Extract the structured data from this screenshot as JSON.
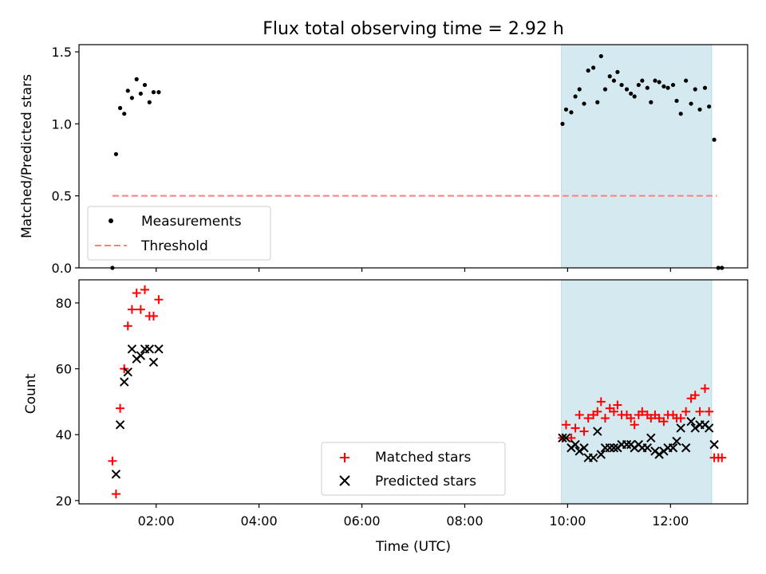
{
  "chart_data": [
    {
      "type": "scatter",
      "title": "Flux total observing time = 2.92 h",
      "xlabel": "",
      "ylabel": "Matched/Predicted stars",
      "xlim": [
        0.5,
        13.5
      ],
      "ylim": [
        0.0,
        1.55
      ],
      "yticks": [
        0.0,
        0.5,
        1.0,
        1.5
      ],
      "ytick_labels": [
        "0.0",
        "0.5",
        "1.0",
        "1.5"
      ],
      "shaded_region": {
        "x_start": 9.88,
        "x_end": 12.8,
        "color": "#d4eaf0"
      },
      "threshold": {
        "name": "Threshold",
        "value": 0.5,
        "x_start": 1.15,
        "x_end": 12.9,
        "color": "#ff7f7f"
      },
      "legend": {
        "position": "lower-left",
        "entries": [
          "Measurements",
          "Threshold"
        ]
      },
      "series": [
        {
          "name": "Measurements",
          "marker": "dot",
          "color": "#000000",
          "points": [
            [
              1.15,
              0.0
            ],
            [
              1.22,
              0.79
            ],
            [
              1.3,
              1.11
            ],
            [
              1.38,
              1.07
            ],
            [
              1.45,
              1.23
            ],
            [
              1.53,
              1.18
            ],
            [
              1.62,
              1.31
            ],
            [
              1.7,
              1.21
            ],
            [
              1.78,
              1.27
            ],
            [
              1.87,
              1.15
            ],
            [
              1.95,
              1.22
            ],
            [
              2.05,
              1.22
            ],
            [
              9.9,
              1.0
            ],
            [
              9.97,
              1.1
            ],
            [
              10.07,
              1.08
            ],
            [
              10.15,
              1.19
            ],
            [
              10.23,
              1.24
            ],
            [
              10.32,
              1.14
            ],
            [
              10.4,
              1.37
            ],
            [
              10.5,
              1.39
            ],
            [
              10.58,
              1.15
            ],
            [
              10.65,
              1.47
            ],
            [
              10.73,
              1.24
            ],
            [
              10.82,
              1.33
            ],
            [
              10.9,
              1.3
            ],
            [
              10.97,
              1.36
            ],
            [
              11.05,
              1.27
            ],
            [
              11.15,
              1.24
            ],
            [
              11.23,
              1.21
            ],
            [
              11.3,
              1.19
            ],
            [
              11.38,
              1.27
            ],
            [
              11.45,
              1.3
            ],
            [
              11.55,
              1.25
            ],
            [
              11.62,
              1.15
            ],
            [
              11.7,
              1.3
            ],
            [
              11.78,
              1.29
            ],
            [
              11.87,
              1.26
            ],
            [
              11.95,
              1.25
            ],
            [
              12.05,
              1.27
            ],
            [
              12.12,
              1.16
            ],
            [
              12.2,
              1.07
            ],
            [
              12.3,
              1.3
            ],
            [
              12.4,
              1.14
            ],
            [
              12.48,
              1.24
            ],
            [
              12.57,
              1.1
            ],
            [
              12.67,
              1.25
            ],
            [
              12.75,
              1.12
            ],
            [
              12.85,
              0.89
            ],
            [
              12.93,
              0.0
            ],
            [
              13.0,
              0.0
            ]
          ]
        }
      ]
    },
    {
      "type": "scatter",
      "xlabel": "Time (UTC)",
      "ylabel": "Count",
      "xlim": [
        0.5,
        13.5
      ],
      "ylim": [
        19.0,
        87.0
      ],
      "xticks": [
        2,
        4,
        6,
        8,
        10,
        12
      ],
      "xtick_labels": [
        "02:00",
        "04:00",
        "06:00",
        "08:00",
        "10:00",
        "12:00"
      ],
      "yticks": [
        20,
        40,
        60,
        80
      ],
      "ytick_labels": [
        "20",
        "40",
        "60",
        "80"
      ],
      "shaded_region": {
        "x_start": 9.88,
        "x_end": 12.8,
        "color": "#d4eaf0"
      },
      "legend": {
        "position": "lower-center",
        "entries": [
          "Matched stars",
          "Predicted stars"
        ]
      },
      "series": [
        {
          "name": "Matched stars",
          "marker": "plus",
          "color": "#ff0000",
          "points": [
            [
              1.15,
              32
            ],
            [
              1.22,
              22
            ],
            [
              1.3,
              48
            ],
            [
              1.38,
              60
            ],
            [
              1.45,
              73
            ],
            [
              1.53,
              78
            ],
            [
              1.62,
              83
            ],
            [
              1.7,
              78
            ],
            [
              1.78,
              84
            ],
            [
              1.87,
              76
            ],
            [
              1.95,
              76
            ],
            [
              2.05,
              81
            ],
            [
              9.9,
              39
            ],
            [
              9.97,
              43
            ],
            [
              10.07,
              39
            ],
            [
              10.15,
              42
            ],
            [
              10.23,
              46
            ],
            [
              10.32,
              41
            ],
            [
              10.4,
              45
            ],
            [
              10.5,
              46
            ],
            [
              10.58,
              47
            ],
            [
              10.65,
              50
            ],
            [
              10.73,
              45
            ],
            [
              10.82,
              48
            ],
            [
              10.9,
              47
            ],
            [
              10.97,
              49
            ],
            [
              11.05,
              46
            ],
            [
              11.15,
              46
            ],
            [
              11.23,
              45
            ],
            [
              11.3,
              43
            ],
            [
              11.38,
              46
            ],
            [
              11.45,
              47
            ],
            [
              11.55,
              46
            ],
            [
              11.62,
              45
            ],
            [
              11.7,
              46
            ],
            [
              11.78,
              45
            ],
            [
              11.87,
              44
            ],
            [
              11.95,
              46
            ],
            [
              12.05,
              46
            ],
            [
              12.12,
              45
            ],
            [
              12.2,
              45
            ],
            [
              12.3,
              47
            ],
            [
              12.4,
              51
            ],
            [
              12.48,
              52
            ],
            [
              12.57,
              47
            ],
            [
              12.67,
              54
            ],
            [
              12.75,
              47
            ],
            [
              12.85,
              33
            ],
            [
              12.93,
              33
            ],
            [
              13.0,
              33
            ]
          ]
        },
        {
          "name": "Predicted stars",
          "marker": "x",
          "color": "#000000",
          "points": [
            [
              1.22,
              28
            ],
            [
              1.3,
              43
            ],
            [
              1.38,
              56
            ],
            [
              1.45,
              59
            ],
            [
              1.53,
              66
            ],
            [
              1.62,
              63
            ],
            [
              1.7,
              64
            ],
            [
              1.78,
              66
            ],
            [
              1.87,
              66
            ],
            [
              1.95,
              62
            ],
            [
              2.05,
              66
            ],
            [
              9.9,
              39
            ],
            [
              9.97,
              39
            ],
            [
              10.07,
              36
            ],
            [
              10.15,
              37
            ],
            [
              10.23,
              35
            ],
            [
              10.32,
              36
            ],
            [
              10.4,
              33
            ],
            [
              10.5,
              33
            ],
            [
              10.58,
              41
            ],
            [
              10.65,
              34
            ],
            [
              10.73,
              36
            ],
            [
              10.82,
              36
            ],
            [
              10.9,
              36
            ],
            [
              10.97,
              36
            ],
            [
              11.05,
              37
            ],
            [
              11.15,
              37
            ],
            [
              11.23,
              37
            ],
            [
              11.3,
              36
            ],
            [
              11.38,
              37
            ],
            [
              11.45,
              36
            ],
            [
              11.55,
              36
            ],
            [
              11.62,
              39
            ],
            [
              11.7,
              35
            ],
            [
              11.78,
              34
            ],
            [
              11.87,
              35
            ],
            [
              11.95,
              36
            ],
            [
              12.05,
              36
            ],
            [
              12.12,
              38
            ],
            [
              12.2,
              42
            ],
            [
              12.3,
              36
            ],
            [
              12.4,
              44
            ],
            [
              12.48,
              42
            ],
            [
              12.57,
              43
            ],
            [
              12.67,
              43
            ],
            [
              12.75,
              42
            ],
            [
              12.85,
              37
            ]
          ]
        }
      ]
    }
  ]
}
